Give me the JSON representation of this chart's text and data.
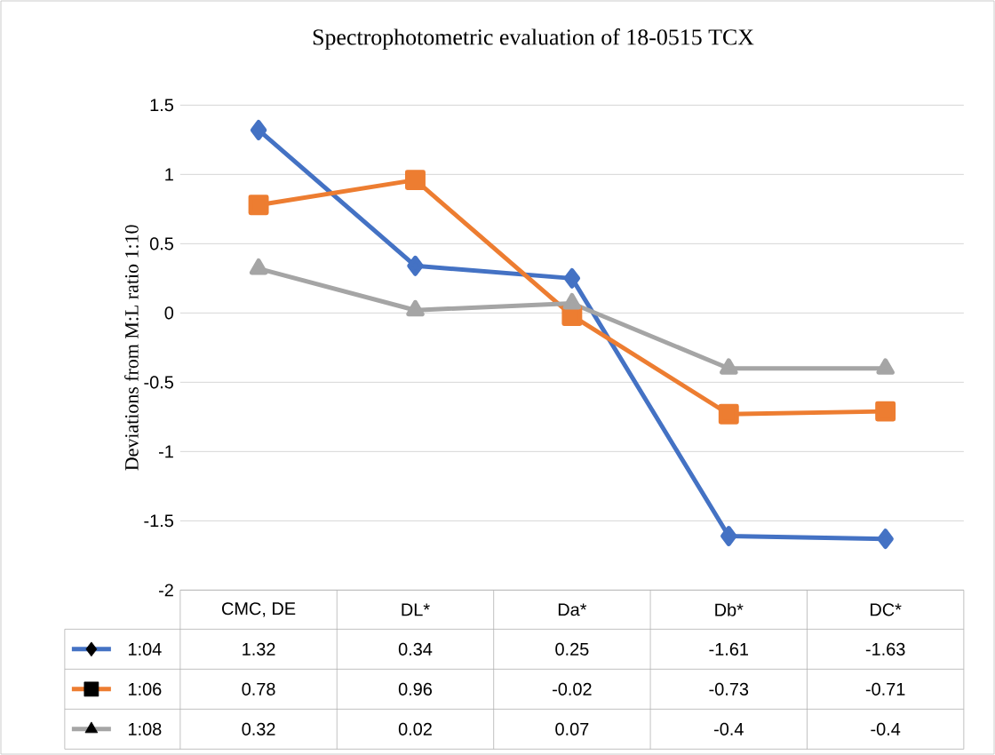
{
  "chart_data": {
    "type": "line",
    "title": "Spectrophotometric evaluation of 18-0515 TCX",
    "ylabel": "Deviations from M:L ratio 1:10",
    "categories": [
      "CMC, DE",
      "DL*",
      "Da*",
      "Db*",
      "DC*"
    ],
    "series": [
      {
        "name": "1:04",
        "color": "#4472c4",
        "marker": "diamond",
        "values": [
          1.32,
          0.34,
          0.25,
          -1.61,
          -1.63
        ]
      },
      {
        "name": "1:06",
        "color": "#ed7d31",
        "marker": "square",
        "values": [
          0.78,
          0.96,
          -0.02,
          -0.73,
          -0.71
        ]
      },
      {
        "name": "1:08",
        "color": "#a5a5a5",
        "marker": "triangle",
        "values": [
          0.32,
          0.02,
          0.07,
          -0.4,
          -0.4
        ]
      }
    ],
    "ylim": [
      -2,
      1.5
    ],
    "yticks": [
      -2,
      -1.5,
      -1,
      -0.5,
      0,
      0.5,
      1,
      1.5
    ],
    "grid": "y",
    "legend": "bottom",
    "data_labels": true
  }
}
